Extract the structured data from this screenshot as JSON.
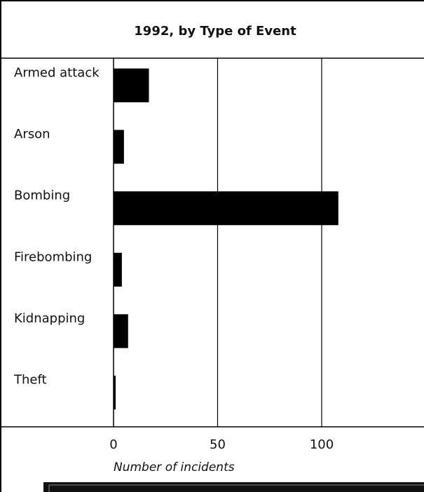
{
  "chart_data": {
    "type": "bar",
    "orientation": "horizontal",
    "title": "1992, by Type of Event",
    "xlabel": "Number of incidents",
    "ylabel": "",
    "categories": [
      "Armed attack",
      "Arson",
      "Bombing",
      "Firebombing",
      "Kidnapping",
      "Theft"
    ],
    "values": [
      17,
      5,
      108,
      4,
      7,
      1
    ],
    "xlim": [
      0,
      150
    ],
    "xticks": [
      0,
      50,
      100
    ],
    "xtick_labels": [
      "0",
      "50",
      "100"
    ],
    "grid": true,
    "legend": "none",
    "colors": {
      "bar": "#000000",
      "grid": "#000000",
      "background": "#ffffff"
    }
  }
}
